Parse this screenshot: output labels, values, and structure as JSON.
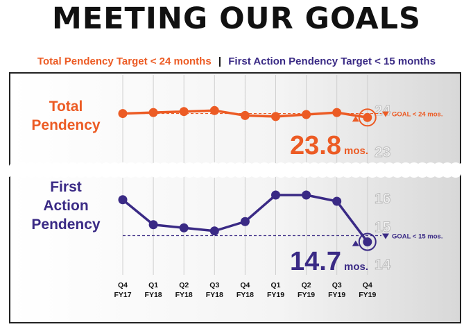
{
  "title": "MEETING OUR GOALS",
  "subtitle": {
    "part1": "Total Pendency Target < 24 months",
    "separator": "|",
    "part2": "First Action Pendency Target < 15 months"
  },
  "colors": {
    "total": "#ec5b24",
    "first": "#3a2a85",
    "axis_text": "#cfcfcf",
    "title": "#111111"
  },
  "chart_data": [
    {
      "type": "line",
      "title": "Total Pendency",
      "x": [
        {
          "quarter": "Q4",
          "fy": "FY17"
        },
        {
          "quarter": "Q1",
          "fy": "FY18"
        },
        {
          "quarter": "Q2",
          "fy": "FY18"
        },
        {
          "quarter": "Q3",
          "fy": "FY18"
        },
        {
          "quarter": "Q4",
          "fy": "FY18"
        },
        {
          "quarter": "Q1",
          "fy": "FY19"
        },
        {
          "quarter": "Q2",
          "fy": "FY19"
        },
        {
          "quarter": "Q3",
          "fy": "FY19"
        },
        {
          "quarter": "Q4",
          "fy": "FY19"
        }
      ],
      "values": [
        24.0,
        24.05,
        24.1,
        24.15,
        23.9,
        23.85,
        23.95,
        24.05,
        23.8
      ],
      "ylim": [
        22.9,
        24.3
      ],
      "yticks": [
        "24",
        "23"
      ],
      "goal": {
        "value": 24.0,
        "label": "GOAL < 24 mos."
      },
      "callout": {
        "value": "23.8",
        "unit": "mos."
      }
    },
    {
      "type": "line",
      "title": "First Action Pendency",
      "title_lines": [
        "First",
        "Action",
        "Pendency"
      ],
      "values": [
        16.05,
        15.25,
        15.15,
        15.05,
        15.35,
        16.2,
        16.2,
        16.0,
        14.7
      ],
      "ylim": [
        14.0,
        16.4
      ],
      "yticks": [
        "16",
        "15",
        "14"
      ],
      "goal": {
        "value": 14.9,
        "label": "GOAL < 15 mos."
      },
      "callout": {
        "value": "14.7",
        "unit": "mos."
      }
    }
  ]
}
